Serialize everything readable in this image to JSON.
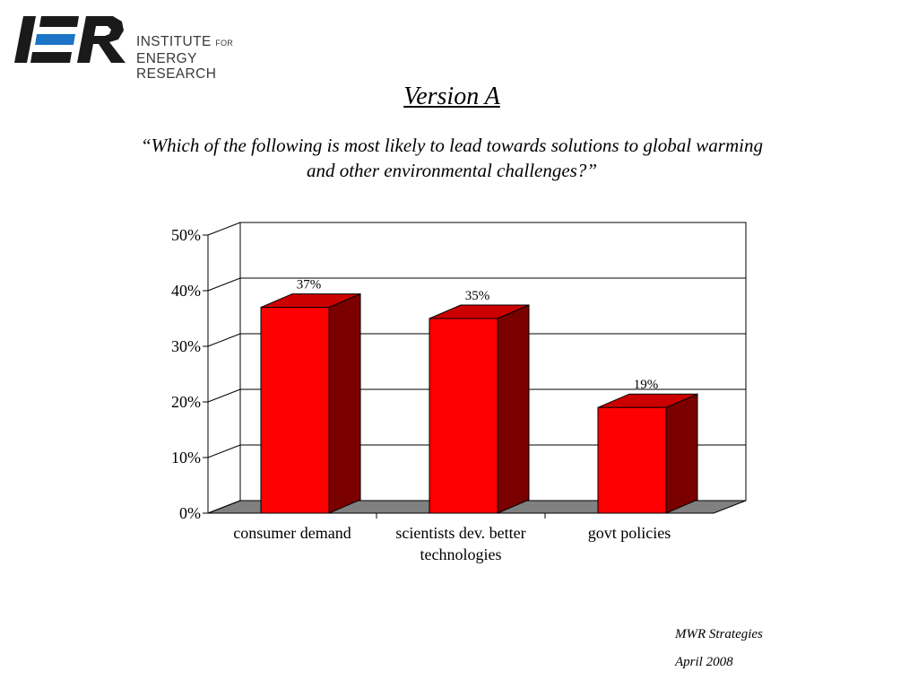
{
  "logo": {
    "letters": "IER",
    "line1_main": "INSTITUTE",
    "line1_small": "FOR",
    "line2": "ENERGY RESEARCH"
  },
  "title": "Version A",
  "subtitle": "“Which of the following is most likely to lead towards solutions to global warming and other environmental challenges?”",
  "chart_data": {
    "type": "bar",
    "title": "",
    "categories": [
      "consumer demand",
      "scientists dev. better technologies",
      "govt policies"
    ],
    "category_lines": [
      [
        "consumer demand"
      ],
      [
        "scientists dev. better",
        "technologies"
      ],
      [
        "govt policies"
      ]
    ],
    "values": [
      37,
      35,
      19
    ],
    "value_labels": [
      "37%",
      "35%",
      "19%"
    ],
    "ylim": [
      0,
      50
    ],
    "yticks": [
      0,
      10,
      20,
      30,
      40,
      50
    ],
    "ytick_labels": [
      "0%",
      "10%",
      "20%",
      "30%",
      "40%",
      "50%"
    ],
    "grid": true,
    "legend": "none",
    "colors": {
      "bar_front": "#ff0000",
      "bar_top": "#cc0000",
      "bar_side": "#7a0000",
      "floor": "#808080"
    }
  },
  "footer": {
    "organization": "MWR Strategies",
    "date": "April 2008"
  }
}
